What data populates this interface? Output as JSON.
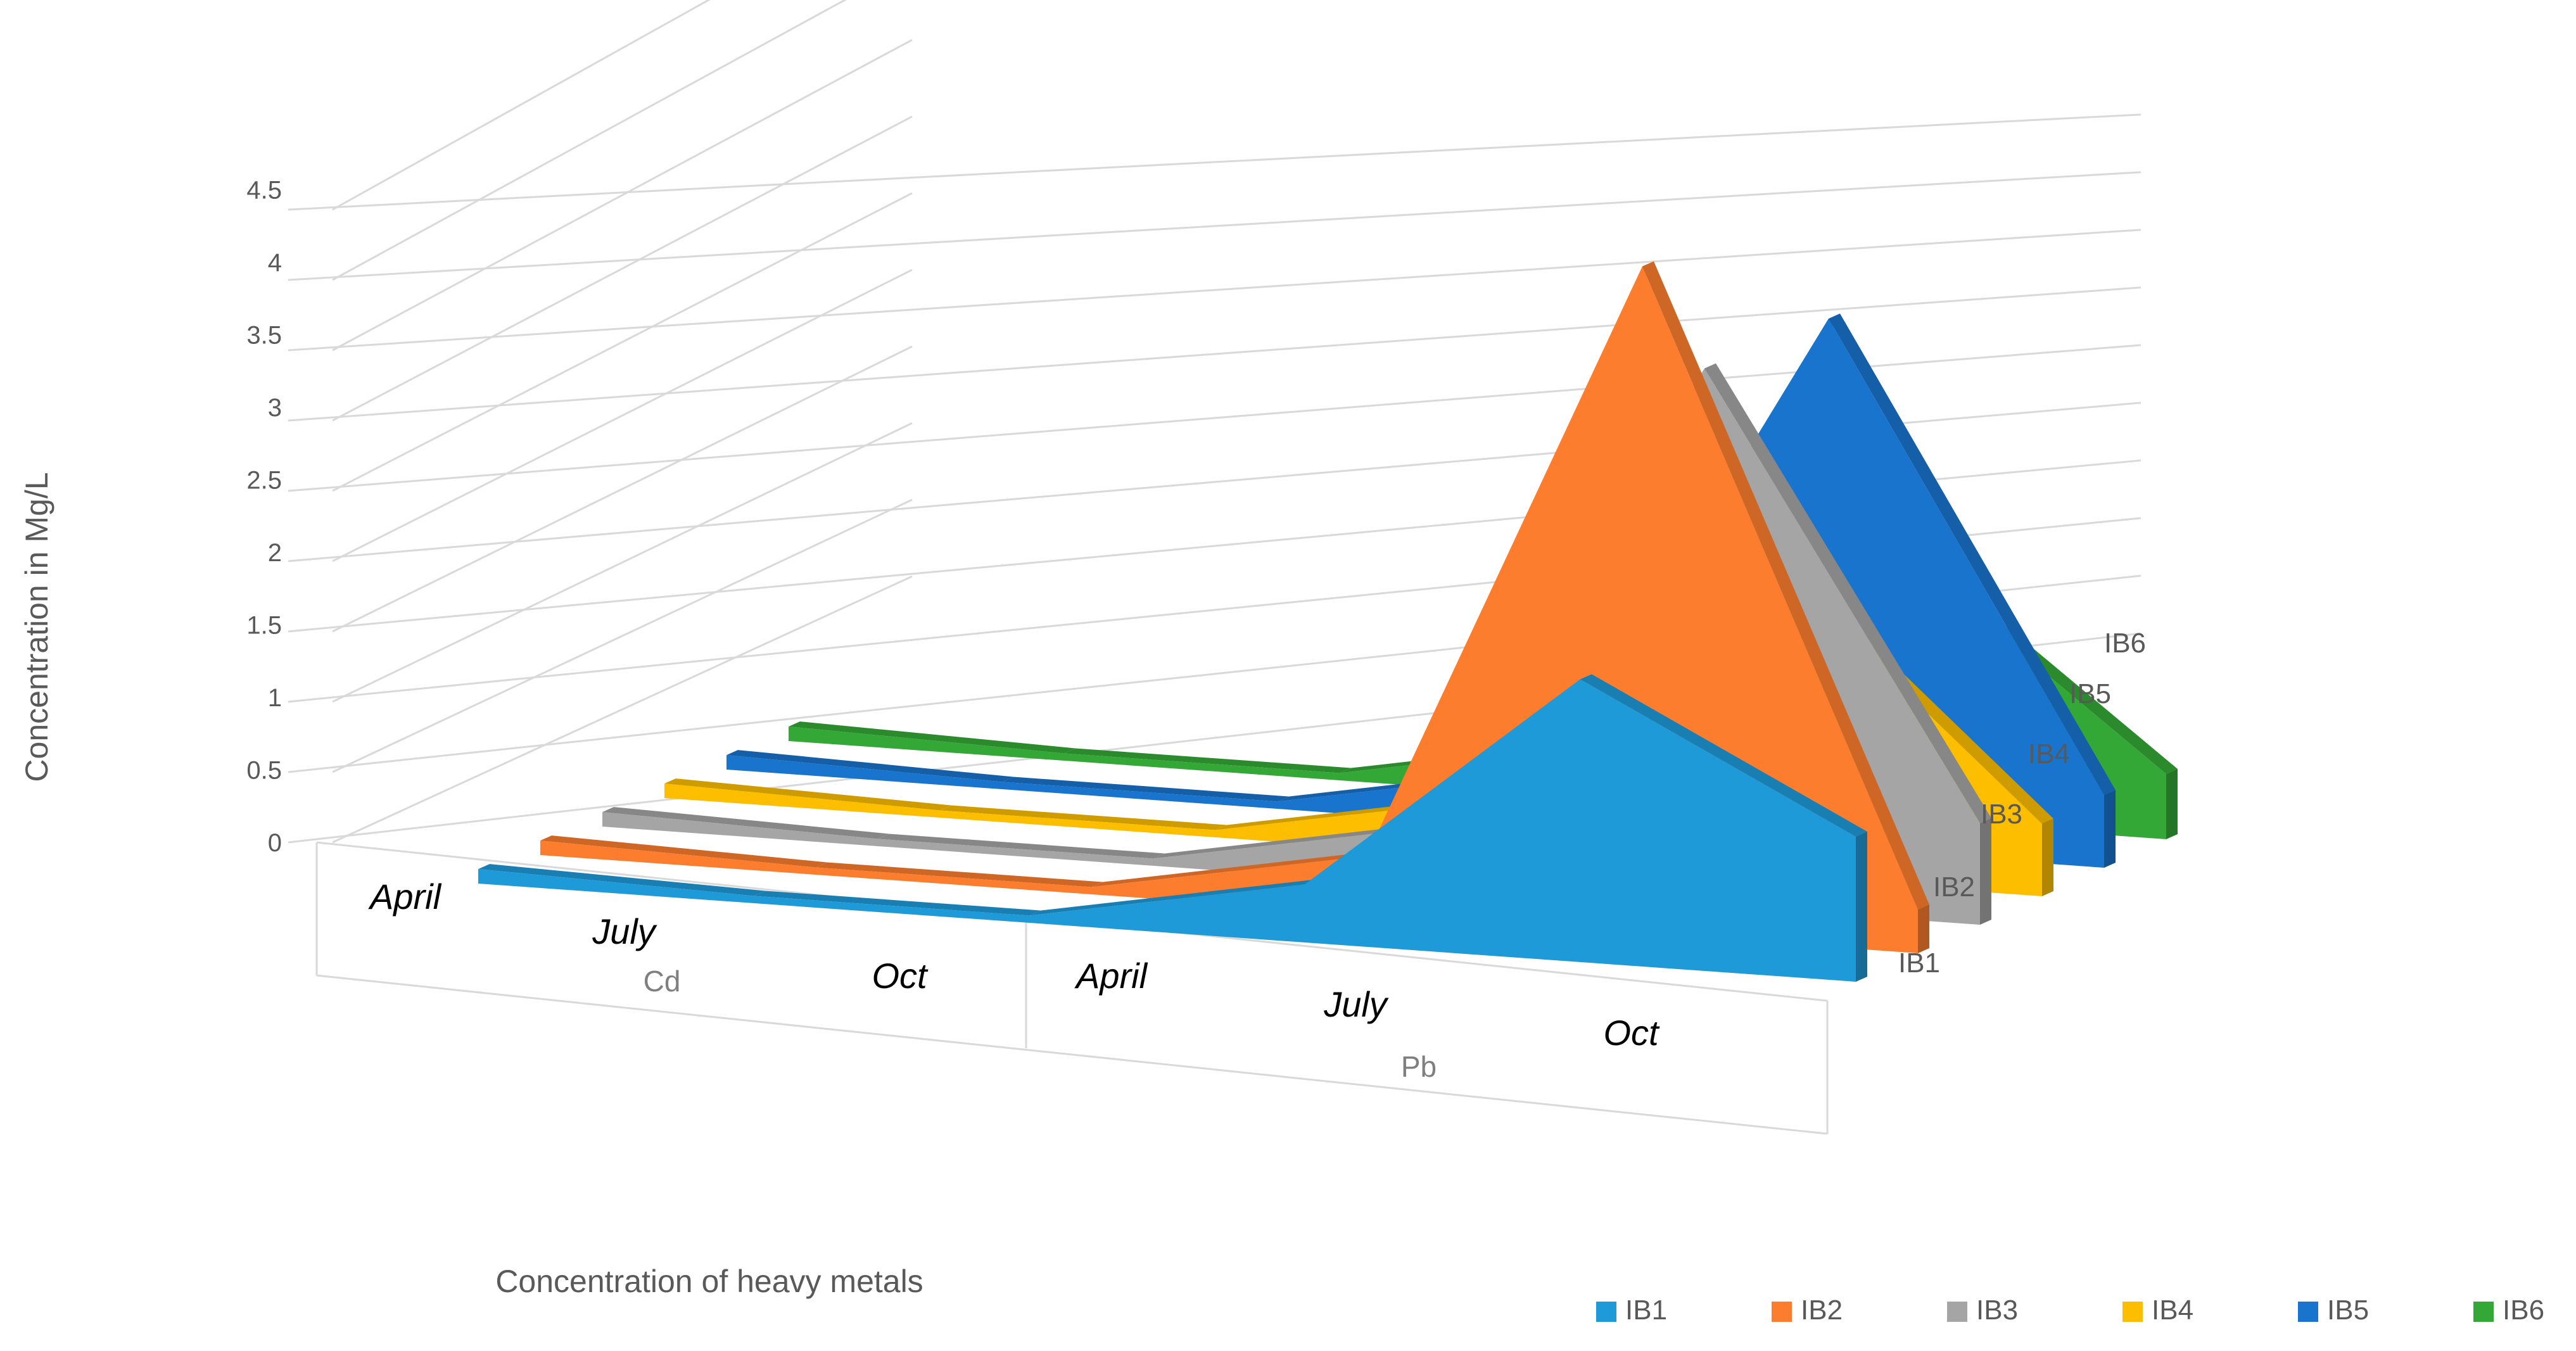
{
  "chart_data": {
    "type": "area",
    "view": "3d",
    "title": "",
    "ylabel": "Concentration in Mg/L",
    "xlabel": "Concentration of heavy metals",
    "ylim": [
      0,
      4.5
    ],
    "y_ticks": [
      "0",
      "0.5",
      "1",
      "1.5",
      "2",
      "2.5",
      "3",
      "3.5",
      "4",
      "4.5"
    ],
    "groups": [
      {
        "name": "Cd",
        "months": [
          "April",
          "July",
          "Oct"
        ]
      },
      {
        "name": "Pb",
        "months": [
          "April",
          "July",
          "Oct"
        ]
      }
    ],
    "series": [
      {
        "name": "IB1",
        "color": "#1f9ad8",
        "values": [
          0.1,
          0.05,
          0.05,
          0.4,
          1.95,
          1.0
        ]
      },
      {
        "name": "IB2",
        "color": "#fb7d2d",
        "values": [
          0.1,
          0.05,
          0.05,
          0.4,
          4.6,
          0.3
        ]
      },
      {
        "name": "IB3",
        "color": "#a5a5a5",
        "values": [
          0.1,
          0.05,
          0.05,
          0.4,
          3.7,
          0.7
        ]
      },
      {
        "name": "IB4",
        "color": "#fdbe00",
        "values": [
          0.1,
          0.05,
          0.05,
          0.4,
          2.2,
          0.5
        ]
      },
      {
        "name": "IB5",
        "color": "#1874cd",
        "values": [
          0.1,
          0.05,
          0.05,
          0.4,
          3.65,
          0.5
        ]
      },
      {
        "name": "IB6",
        "color": "#34a836",
        "values": [
          0.1,
          0.05,
          0.05,
          0.4,
          1.9,
          0.45
        ]
      }
    ],
    "grid": true,
    "legend_position": "bottom-right"
  }
}
